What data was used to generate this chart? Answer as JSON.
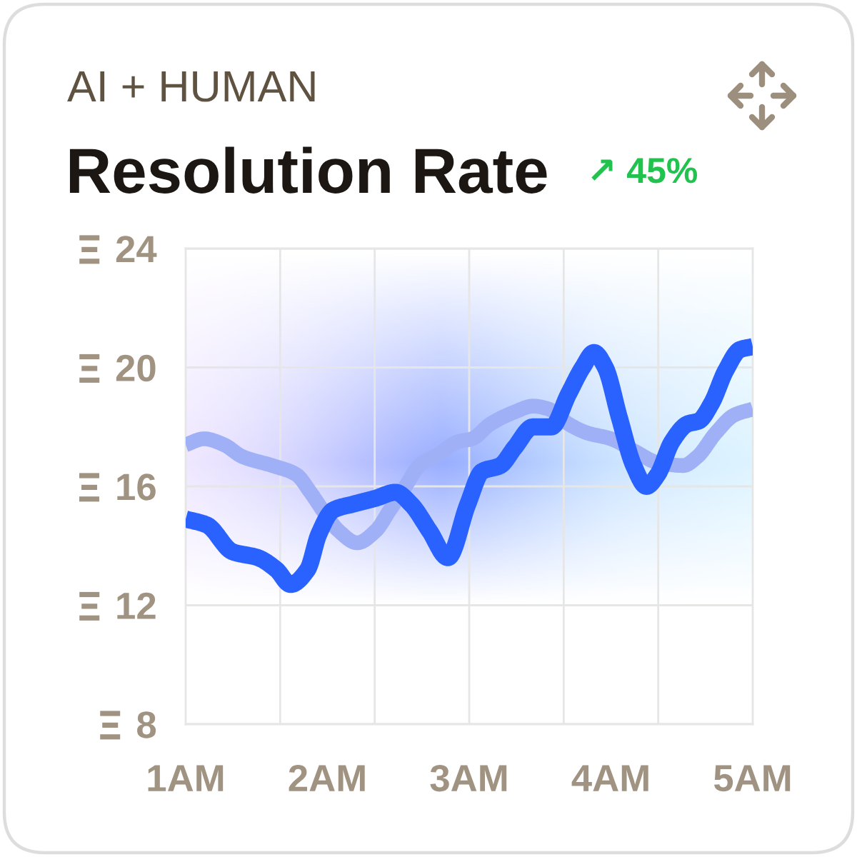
{
  "chart_data": {
    "type": "line",
    "subtitle": "AI + HUMAN",
    "title": "Resolution Rate",
    "annotations": [
      "↗ 45%"
    ],
    "series": [
      {
        "color": "#2962ff",
        "x": [
          1.0,
          1.15,
          1.33,
          1.51,
          1.64,
          1.74,
          1.86,
          1.94,
          2.04,
          2.18,
          2.34,
          2.48,
          2.59,
          2.72,
          2.85,
          2.99,
          3.09,
          3.22,
          3.32,
          3.45,
          3.58,
          3.7,
          3.8,
          3.88,
          3.96,
          4.06,
          4.16,
          4.25,
          4.33,
          4.43,
          4.54,
          4.62,
          4.71,
          4.81,
          4.91,
          5.0
        ],
        "values": [
          14.9,
          14.7,
          13.8,
          13.6,
          13.2,
          12.7,
          13.2,
          14.4,
          15.2,
          15.4,
          15.6,
          15.8,
          15.4,
          14.5,
          13.6,
          15.4,
          16.5,
          16.7,
          17.3,
          18.0,
          18.0,
          19.1,
          20.0,
          20.5,
          20.0,
          18.3,
          16.7,
          16.0,
          16.4,
          17.5,
          18.1,
          18.2,
          18.8,
          19.9,
          20.6,
          20.7
        ]
      },
      {
        "color": "#9fb0f6",
        "x": [
          1.0,
          1.13,
          1.27,
          1.4,
          1.61,
          1.78,
          1.88,
          1.98,
          2.08,
          2.21,
          2.34,
          2.44,
          2.55,
          2.65,
          2.79,
          2.92,
          3.02,
          3.15,
          3.32,
          3.45,
          3.56,
          3.7,
          3.83,
          4.0,
          4.16,
          4.33,
          4.51,
          4.61,
          4.74,
          4.87,
          5.0
        ],
        "values": [
          17.4,
          17.6,
          17.4,
          17.0,
          16.7,
          16.4,
          15.8,
          15.1,
          14.5,
          14.1,
          14.5,
          15.2,
          16.0,
          16.7,
          17.1,
          17.5,
          17.6,
          18.1,
          18.5,
          18.7,
          18.6,
          18.1,
          17.8,
          17.6,
          17.2,
          16.8,
          16.7,
          17.0,
          17.8,
          18.4,
          18.6
        ]
      }
    ],
    "xlim": [
      1,
      5
    ],
    "xticks": [
      {
        "value": 1,
        "label": "1AM"
      },
      {
        "value": 2,
        "label": "2AM"
      },
      {
        "value": 3,
        "label": "3AM"
      },
      {
        "value": 4,
        "label": "4AM"
      },
      {
        "value": 5,
        "label": "5AM"
      },
      {
        "value": 1.6667,
        "label": null
      },
      {
        "value": 2.3333,
        "label": null
      },
      {
        "value": 3,
        "label": null
      },
      {
        "value": 3.6667,
        "label": null
      },
      {
        "value": 4.3333,
        "label": null
      }
    ],
    "ylim": [
      8,
      24
    ],
    "yticks": [
      8,
      12,
      16,
      20,
      24
    ],
    "grid": true,
    "line_style": "solid"
  }
}
